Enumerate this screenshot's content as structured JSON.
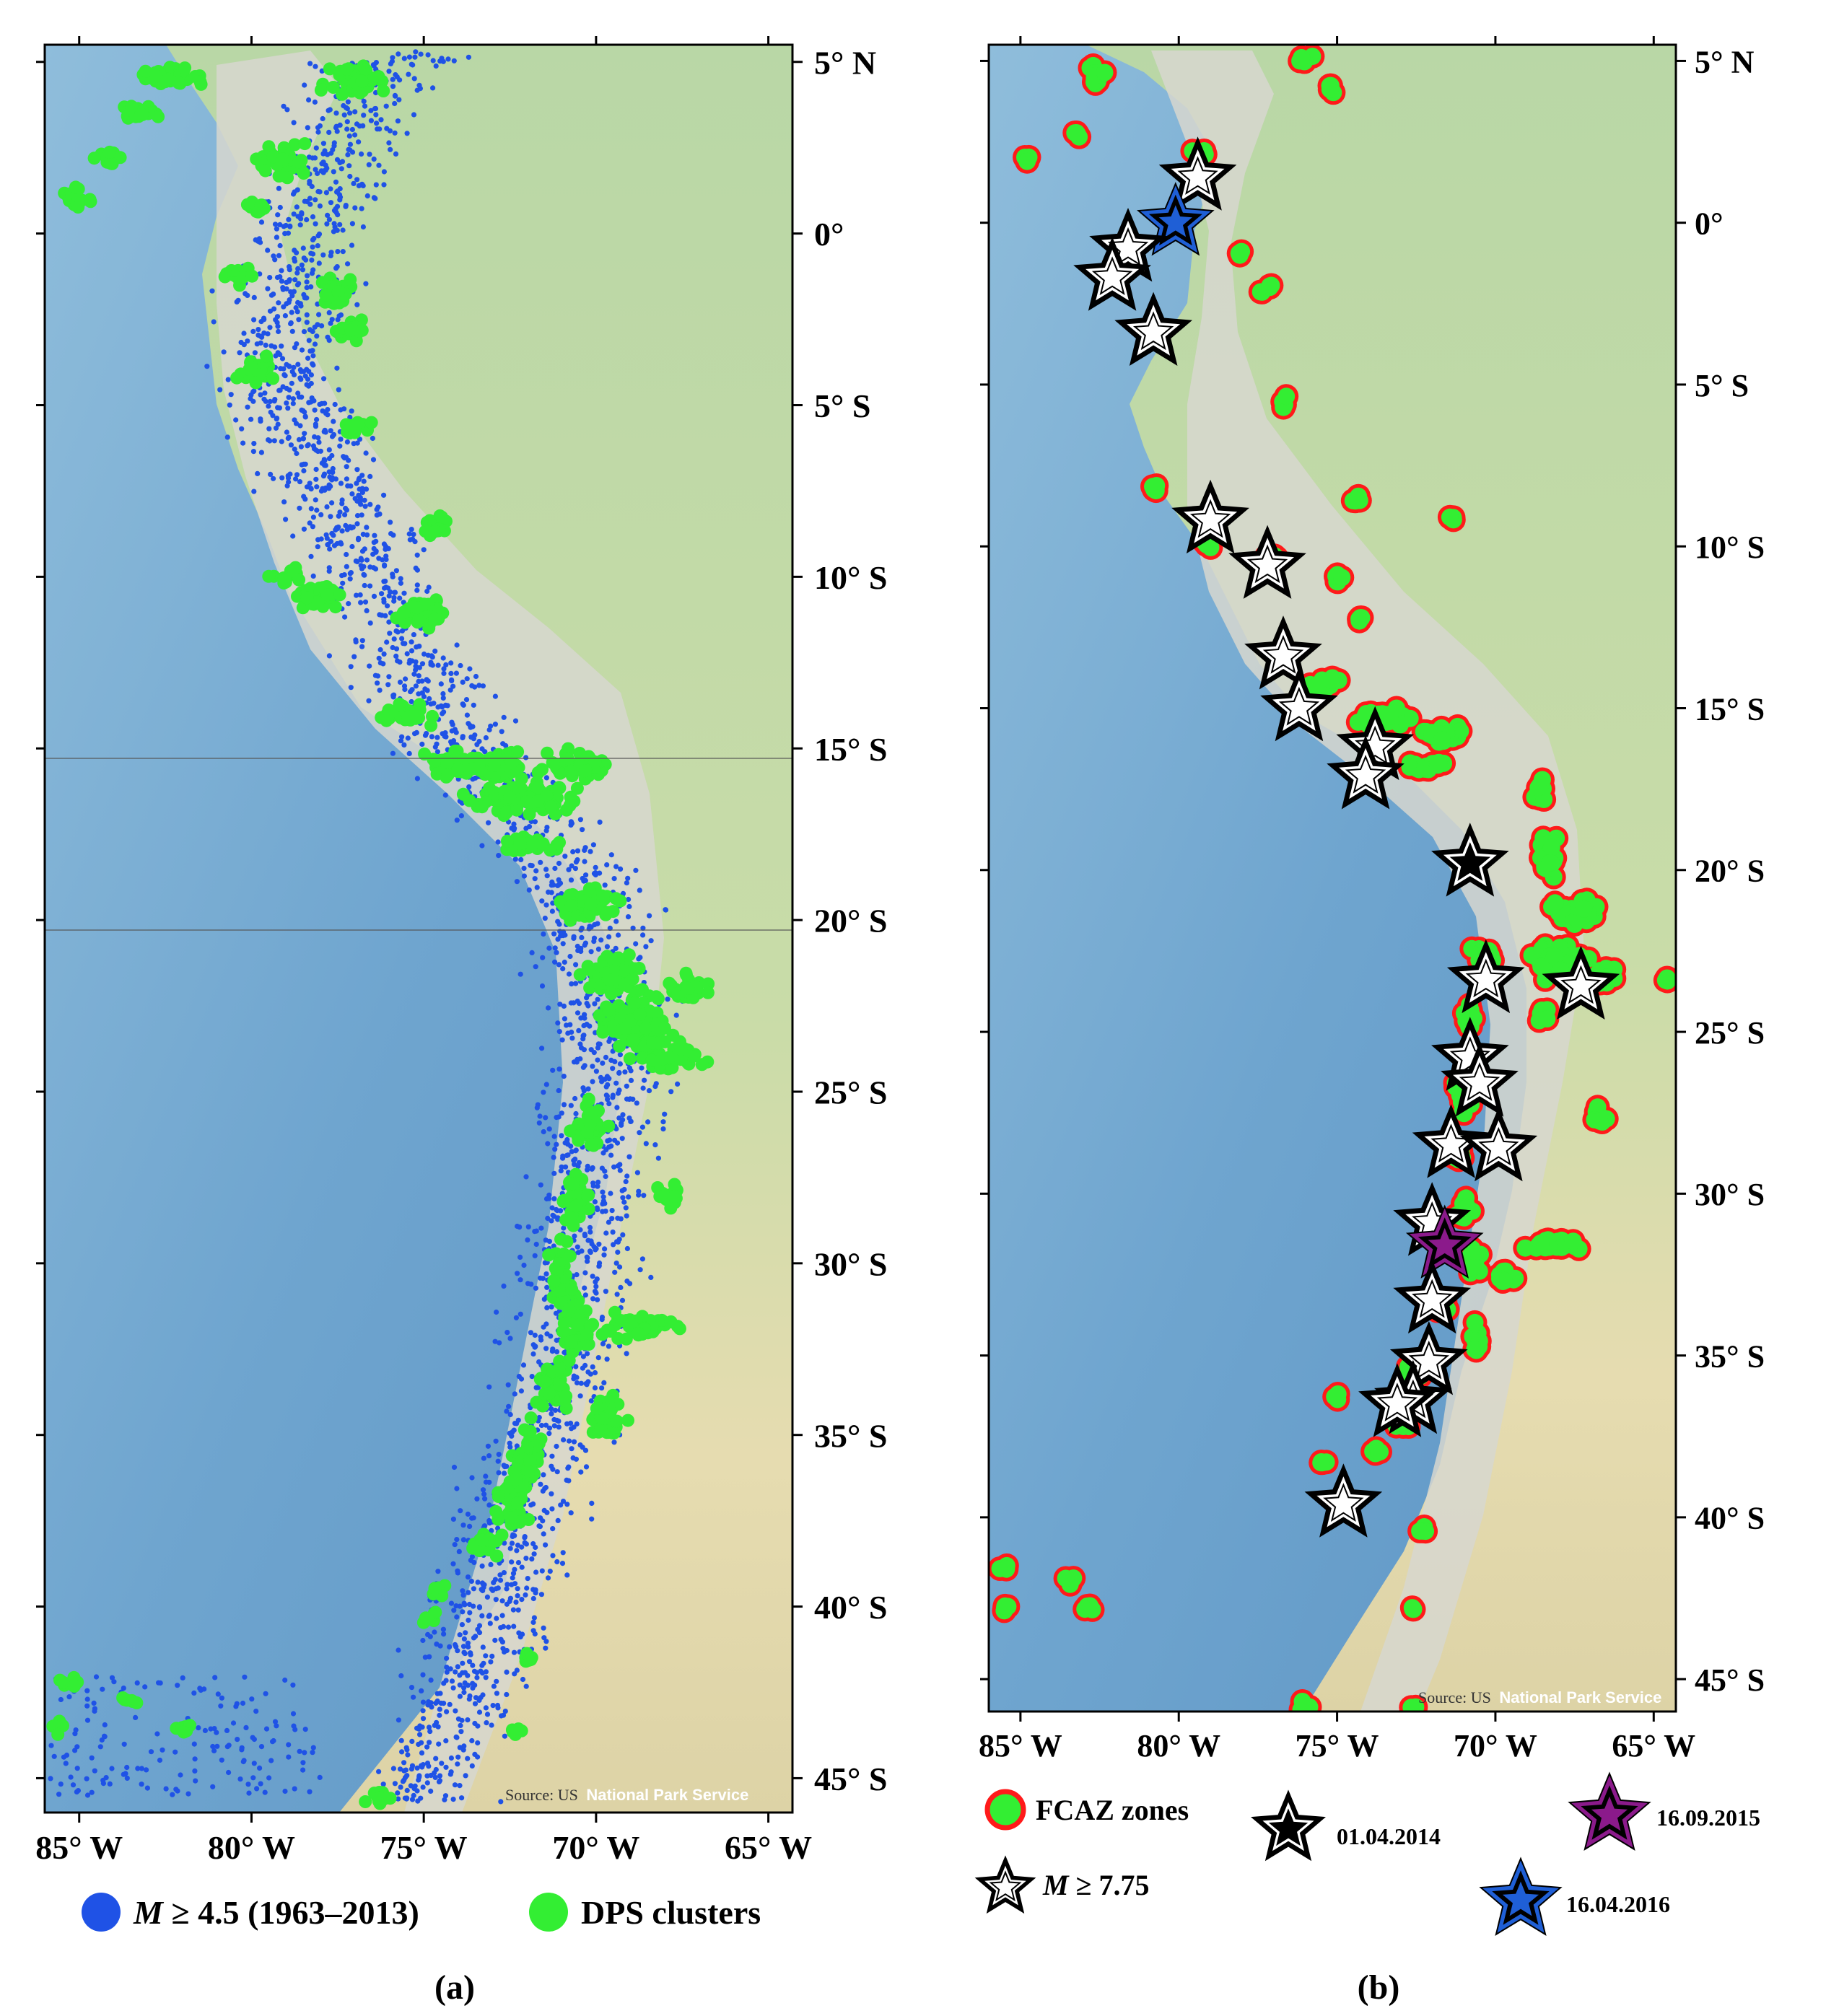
{
  "panel_a": {
    "caption": "(a)",
    "longitude_labels": [
      "85° W",
      "80° W",
      "75° W",
      "70° W",
      "65° W"
    ],
    "latitude_labels": [
      "5° N",
      "0°",
      "5° S",
      "10° S",
      "15° S",
      "20° S",
      "25° S",
      "30° S",
      "35° S",
      "40° S",
      "45° S"
    ],
    "source_credit_prefix": "Source: US",
    "source_credit_name": "National Park Service",
    "legend": {
      "earthquakes_label": "M ≥ 4.5 (1963–2013)",
      "earthquakes_color": "#1f52e6",
      "dps_label": "DPS clusters",
      "dps_color": "#33ee33"
    }
  },
  "panel_b": {
    "caption": "(b)",
    "longitude_labels": [
      "85° W",
      "80° W",
      "75° W",
      "70° W",
      "65° W"
    ],
    "latitude_labels": [
      "5° N",
      "0°",
      "5° S",
      "10° S",
      "15° S",
      "20° S",
      "25° S",
      "30° S",
      "35° S",
      "40° S",
      "45° S"
    ],
    "source_credit_prefix": "Source: US",
    "source_credit_name": "National Park Service",
    "legend": {
      "fcaz_label": "FCAZ zones",
      "large_quake_label": "M ≥ 7.75",
      "event_black_date": "01.04.2014",
      "event_blue_date": "16.04.2016",
      "event_purple_date": "16.09.2015",
      "fcaz_fill": "#33ee33",
      "fcaz_border": "#ff1a1a",
      "star_blue": "#1f5fd6",
      "star_purple": "#8b1a8b"
    },
    "stars_lonlat": [
      {
        "lon": -79.4,
        "lat": 1.4,
        "kind": "white"
      },
      {
        "lon": -80.1,
        "lat": 0.0,
        "kind": "blue"
      },
      {
        "lon": -81.6,
        "lat": -0.8,
        "kind": "white"
      },
      {
        "lon": -82.1,
        "lat": -1.7,
        "kind": "white"
      },
      {
        "lon": -80.8,
        "lat": -3.4,
        "kind": "white"
      },
      {
        "lon": -79.0,
        "lat": -9.2,
        "kind": "white"
      },
      {
        "lon": -77.2,
        "lat": -10.6,
        "kind": "white"
      },
      {
        "lon": -76.7,
        "lat": -13.4,
        "kind": "white"
      },
      {
        "lon": -76.2,
        "lat": -15.0,
        "kind": "white"
      },
      {
        "lon": -73.8,
        "lat": -16.2,
        "kind": "white"
      },
      {
        "lon": -74.1,
        "lat": -17.1,
        "kind": "white"
      },
      {
        "lon": -70.8,
        "lat": -19.8,
        "kind": "black"
      },
      {
        "lon": -70.3,
        "lat": -23.4,
        "kind": "white"
      },
      {
        "lon": -67.3,
        "lat": -23.6,
        "kind": "white"
      },
      {
        "lon": -70.8,
        "lat": -25.8,
        "kind": "white"
      },
      {
        "lon": -70.5,
        "lat": -26.6,
        "kind": "white"
      },
      {
        "lon": -71.4,
        "lat": -28.5,
        "kind": "white"
      },
      {
        "lon": -69.9,
        "lat": -28.6,
        "kind": "white"
      },
      {
        "lon": -72.0,
        "lat": -30.9,
        "kind": "white"
      },
      {
        "lon": -71.6,
        "lat": -31.6,
        "kind": "purple"
      },
      {
        "lon": -72.0,
        "lat": -33.3,
        "kind": "white"
      },
      {
        "lon": -72.1,
        "lat": -35.2,
        "kind": "white"
      },
      {
        "lon": -72.6,
        "lat": -36.4,
        "kind": "white"
      },
      {
        "lon": -73.1,
        "lat": -36.5,
        "kind": "white"
      },
      {
        "lon": -74.8,
        "lat": -39.6,
        "kind": "white"
      }
    ]
  }
}
